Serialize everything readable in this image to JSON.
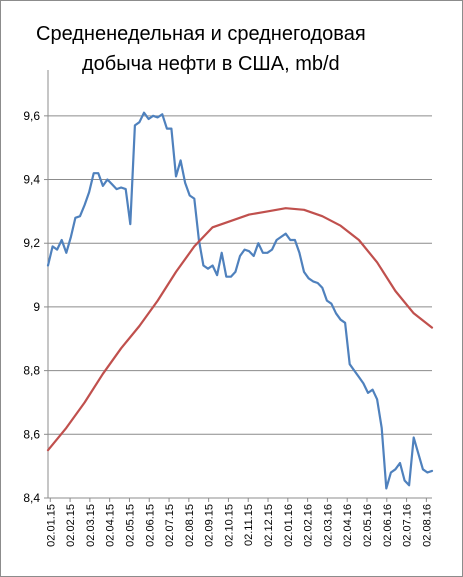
{
  "chart_data": {
    "type": "line",
    "title_lines": [
      "Средненедельная и среднегодовая",
      "добыча нефти в США, mb/d"
    ],
    "xlabel": "",
    "ylabel": "",
    "ylim": [
      8.4,
      9.7
    ],
    "y_ticks": [
      8.4,
      8.6,
      8.8,
      9.0,
      9.2,
      9.4,
      9.6
    ],
    "y_tick_labels": [
      "8,4",
      "8,6",
      "8,8",
      "9",
      "9,2",
      "9,4",
      "9,6"
    ],
    "x_tick_labels": [
      "02.01.15",
      "02.02.15",
      "02.03.15",
      "02.04.15",
      "02.05.15",
      "02.06.15",
      "02.07.15",
      "02.08.15",
      "02.09.15",
      "02.10.15",
      "02.11.15",
      "02.12.15",
      "02.01.16",
      "02.02.16",
      "02.03.16",
      "02.04.16",
      "02.05.16",
      "02.06.16",
      "02.07.16",
      "02.08.16"
    ],
    "grid": true,
    "series": [
      {
        "color": "#4f81bd",
        "week": [
          0,
          1,
          2,
          3,
          4,
          5,
          6,
          7,
          8,
          9,
          10,
          11,
          12,
          13,
          14,
          15,
          16,
          17,
          18,
          19,
          20,
          21,
          22,
          23,
          24,
          25,
          26,
          27,
          28,
          29,
          30,
          31,
          32,
          33,
          34,
          35,
          36,
          37,
          38,
          39,
          40,
          41,
          42,
          43,
          44,
          45,
          46,
          47,
          48,
          49,
          50,
          51,
          52,
          53,
          54,
          55,
          56,
          57,
          58,
          59,
          60,
          61,
          62,
          63,
          64,
          65,
          66,
          67,
          68,
          69,
          70,
          71,
          72,
          73,
          74,
          75,
          76,
          77,
          78,
          79,
          80,
          81,
          82,
          83,
          84
        ],
        "values": [
          9.13,
          9.19,
          9.18,
          9.21,
          9.17,
          9.22,
          9.28,
          9.285,
          9.32,
          9.36,
          9.42,
          9.42,
          9.38,
          9.4,
          9.385,
          9.37,
          9.375,
          9.37,
          9.26,
          9.57,
          9.58,
          9.61,
          9.59,
          9.6,
          9.595,
          9.605,
          9.56,
          9.56,
          9.41,
          9.46,
          9.39,
          9.35,
          9.34,
          9.21,
          9.13,
          9.12,
          9.13,
          9.1,
          9.17,
          9.095,
          9.095,
          9.11,
          9.16,
          9.18,
          9.175,
          9.16,
          9.2,
          9.17,
          9.17,
          9.18,
          9.21,
          9.22,
          9.23,
          9.21,
          9.21,
          9.17,
          9.11,
          9.09,
          9.08,
          9.075,
          9.06,
          9.02,
          9.01,
          8.98,
          8.96,
          8.95,
          8.82,
          8.8,
          8.78,
          8.76,
          8.73,
          8.74,
          8.71,
          8.62,
          8.43,
          8.48,
          8.49,
          8.51,
          8.455,
          8.44,
          8.59,
          8.54,
          8.49,
          8.48,
          8.485
        ]
      },
      {
        "color": "#c0504d",
        "week": [
          0,
          4,
          8,
          12,
          16,
          20,
          24,
          28,
          32,
          36,
          40,
          44,
          48,
          52,
          56,
          60,
          64,
          68,
          72,
          76,
          80,
          84
        ],
        "values": [
          8.55,
          8.62,
          8.7,
          8.79,
          8.87,
          8.94,
          9.02,
          9.11,
          9.19,
          9.25,
          9.27,
          9.29,
          9.3,
          9.31,
          9.305,
          9.285,
          9.255,
          9.21,
          9.14,
          9.05,
          8.98,
          8.935
        ]
      }
    ]
  }
}
